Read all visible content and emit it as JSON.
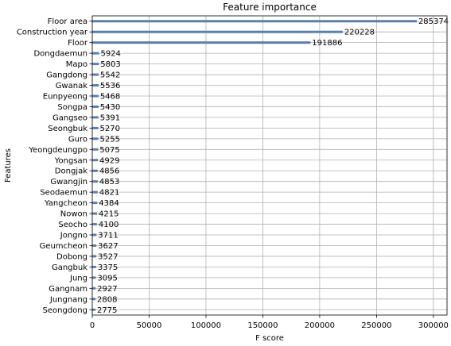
{
  "chart_data": {
    "type": "bar",
    "orientation": "horizontal",
    "title": "Feature importance",
    "xlabel": "F score",
    "ylabel": "Features",
    "xlim": [
      0,
      312000
    ],
    "xticks": [
      0,
      50000,
      100000,
      150000,
      200000,
      250000,
      300000
    ],
    "grid": true,
    "categories": [
      "Floor area",
      "Construction year",
      "Floor",
      "Dongdaemun",
      "Mapo",
      "Gangdong",
      "Gwanak",
      "Eunpyeong",
      "Songpa",
      "Gangseo",
      "Seongbuk",
      "Guro",
      "Yeongdeungpo",
      "Yongsan",
      "Dongjak",
      "Gwangjin",
      "Seodaemun",
      "Yangcheon",
      "Nowon",
      "Seocho",
      "Jongno",
      "Geumcheon",
      "Dobong",
      "Gangbuk",
      "Jung",
      "Gangnam",
      "Jungnang",
      "Seongdong"
    ],
    "values": [
      285374,
      220228,
      191886,
      5924,
      5803,
      5542,
      5536,
      5468,
      5430,
      5391,
      5270,
      5255,
      5075,
      4929,
      4856,
      4853,
      4821,
      4384,
      4215,
      4100,
      3711,
      3627,
      3527,
      3375,
      3095,
      2927,
      2808,
      2775
    ],
    "bar_color": "#5b7fa6"
  }
}
